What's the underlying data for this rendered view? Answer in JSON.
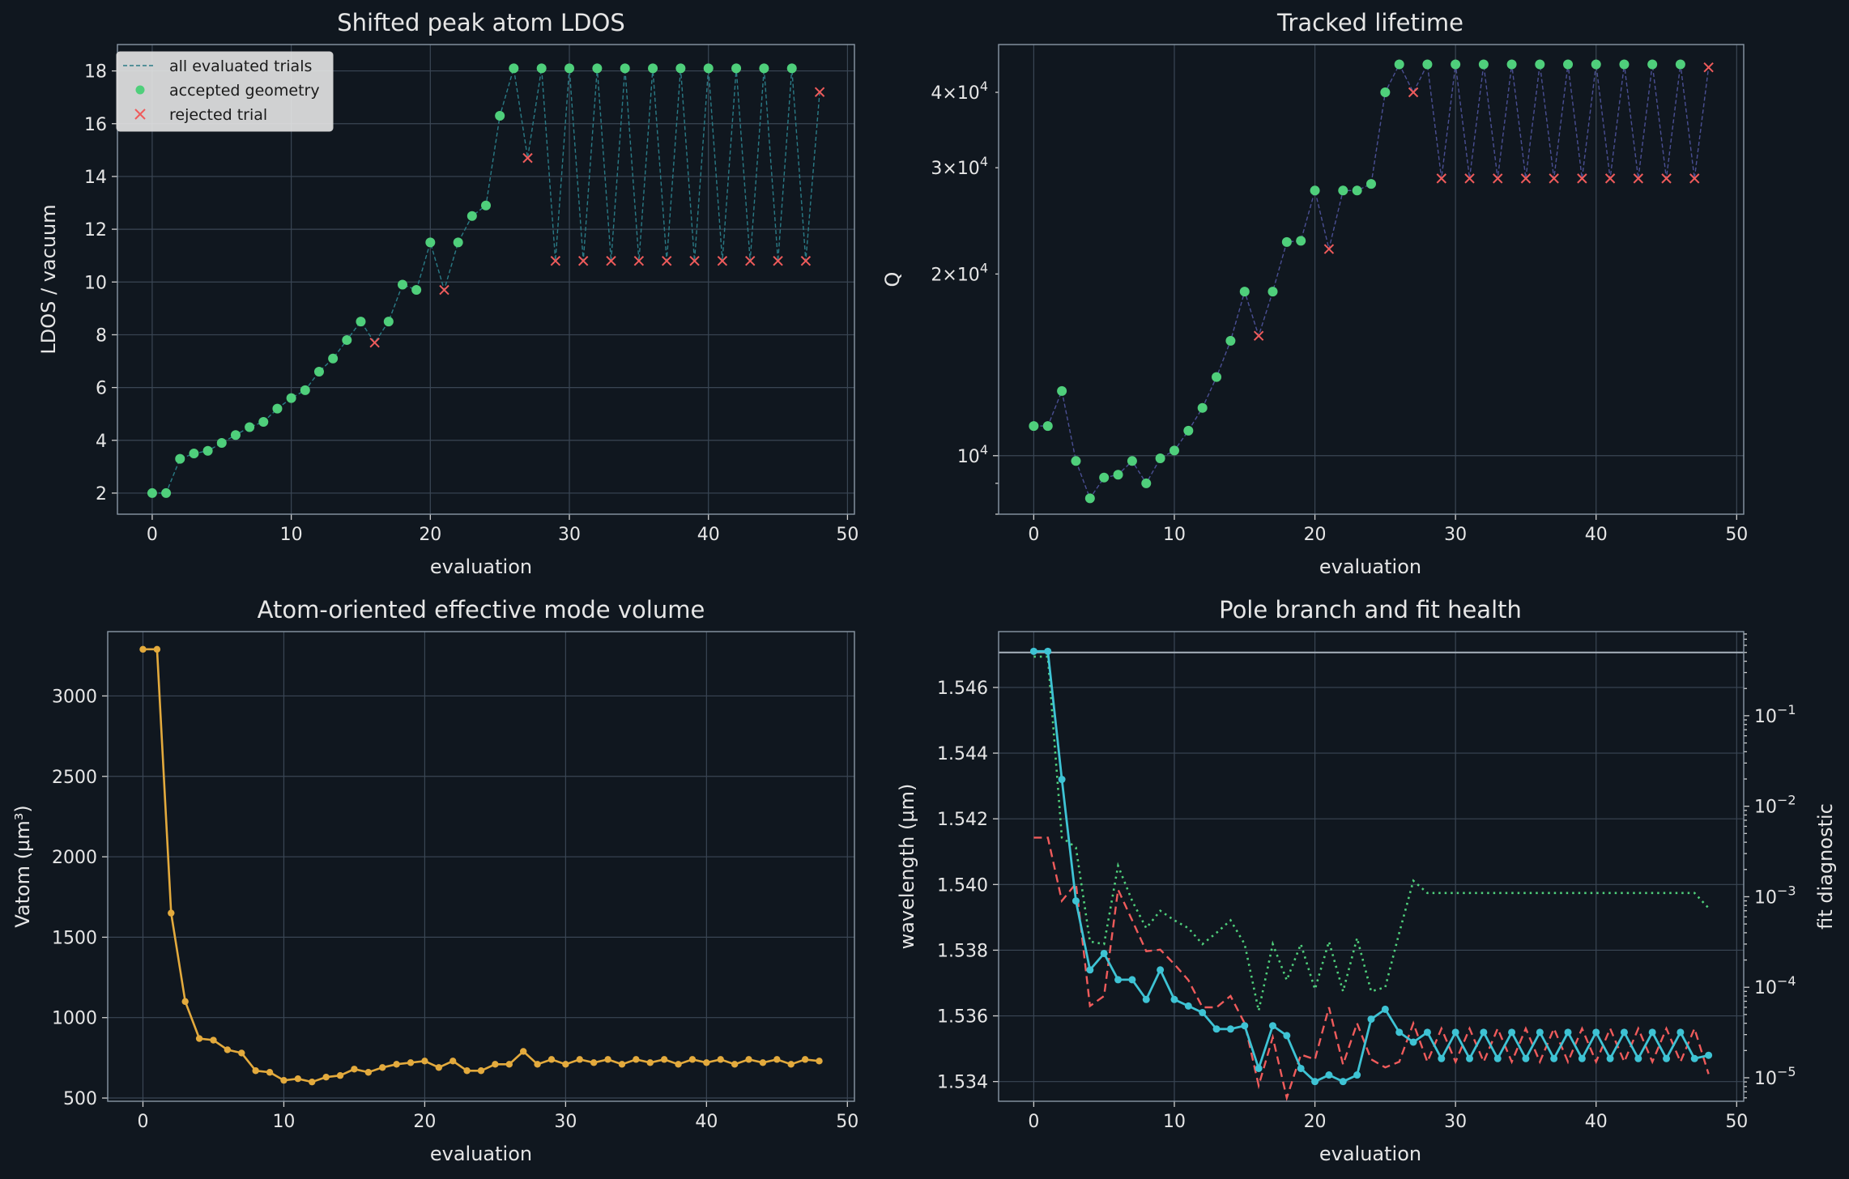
{
  "colors": {
    "background": "#10171f",
    "accepted": "#4fcf7b",
    "rejected": "#ef5b5b",
    "trials_line_ldos": "#2a7b86",
    "trials_line_q": "#4a4f93",
    "vatom": "#e3aa3d",
    "wavelength": "#3ec3d4",
    "diag_dashed": "#ef5b5b",
    "diag_dotted": "#4fcf7b",
    "hline": "#a9b3bd"
  },
  "chart_data": [
    {
      "type": "scatter",
      "title": "Shifted peak atom LDOS",
      "xlabel": "evaluation",
      "ylabel": "LDOS / vacuum",
      "xlim": [
        -2.5,
        50.5
      ],
      "ylim": [
        1.2,
        19.0
      ],
      "xticks": [
        0,
        10,
        20,
        30,
        40,
        50
      ],
      "yticks": [
        2,
        4,
        6,
        8,
        10,
        12,
        14,
        16,
        18
      ],
      "grid": true,
      "legend": {
        "position": "upper-left",
        "entries": [
          "all evaluated trials",
          "accepted geometry",
          "rejected trial"
        ]
      },
      "trials_x": [
        0,
        1,
        2,
        3,
        4,
        5,
        6,
        7,
        8,
        9,
        10,
        11,
        12,
        13,
        14,
        15,
        16,
        17,
        18,
        19,
        20,
        21,
        22,
        23,
        24,
        25,
        26,
        27,
        28,
        29,
        30,
        31,
        32,
        33,
        34,
        35,
        36,
        37,
        38,
        39,
        40,
        41,
        42,
        43,
        44,
        45,
        46,
        47,
        48
      ],
      "trials_y": [
        2.0,
        2.0,
        3.3,
        3.5,
        3.6,
        3.9,
        4.2,
        4.5,
        4.7,
        5.2,
        5.6,
        5.9,
        6.6,
        7.1,
        7.8,
        8.5,
        7.7,
        8.5,
        9.9,
        9.7,
        11.5,
        9.7,
        11.5,
        12.5,
        12.9,
        16.3,
        18.1,
        14.7,
        18.1,
        10.8,
        18.1,
        10.8,
        18.1,
        10.8,
        18.1,
        10.8,
        18.1,
        10.8,
        18.1,
        10.8,
        18.1,
        10.8,
        18.1,
        10.8,
        18.1,
        10.8,
        18.1,
        10.8,
        17.2
      ],
      "accepted_x": [
        0,
        1,
        2,
        3,
        4,
        5,
        6,
        7,
        8,
        9,
        10,
        11,
        12,
        13,
        14,
        15,
        17,
        18,
        19,
        20,
        22,
        23,
        24,
        25,
        26,
        28,
        30,
        32,
        34,
        36,
        38,
        40,
        42,
        44,
        46
      ],
      "accepted_y": [
        2.0,
        2.0,
        3.3,
        3.5,
        3.6,
        3.9,
        4.2,
        4.5,
        4.7,
        5.2,
        5.6,
        5.9,
        6.6,
        7.1,
        7.8,
        8.5,
        8.5,
        9.9,
        9.7,
        11.5,
        11.5,
        12.5,
        12.9,
        16.3,
        18.1,
        18.1,
        18.1,
        18.1,
        18.1,
        18.1,
        18.1,
        18.1,
        18.1,
        18.1,
        18.1
      ],
      "rejected_x": [
        16,
        21,
        27,
        29,
        31,
        33,
        35,
        37,
        39,
        41,
        43,
        45,
        47,
        48
      ],
      "rejected_y": [
        7.7,
        9.7,
        14.7,
        10.8,
        10.8,
        10.8,
        10.8,
        10.8,
        10.8,
        10.8,
        10.8,
        10.8,
        10.8,
        17.2
      ]
    },
    {
      "type": "scatter",
      "title": "Tracked lifetime",
      "xlabel": "evaluation",
      "ylabel": "Q",
      "y_scale": "log",
      "xlim": [
        -2.5,
        50.5
      ],
      "ylim": [
        8000,
        48000
      ],
      "xticks": [
        0,
        10,
        20,
        30,
        40,
        50
      ],
      "yticks_labeled": [
        {
          "value": 10000,
          "base": "10",
          "exp": "4",
          "coef": ""
        },
        {
          "value": 20000,
          "base": "10",
          "exp": "4",
          "coef": "2×"
        },
        {
          "value": 30000,
          "base": "10",
          "exp": "4",
          "coef": "3×"
        },
        {
          "value": 40000,
          "base": "10",
          "exp": "4",
          "coef": "4×"
        }
      ],
      "grid": true,
      "trials_x": [
        0,
        1,
        2,
        3,
        4,
        5,
        6,
        7,
        8,
        9,
        10,
        11,
        12,
        13,
        14,
        15,
        16,
        17,
        18,
        19,
        20,
        21,
        22,
        23,
        24,
        25,
        26,
        27,
        28,
        29,
        30,
        31,
        32,
        33,
        34,
        35,
        36,
        37,
        38,
        39,
        40,
        41,
        42,
        43,
        44,
        45,
        46,
        47,
        48
      ],
      "trials_y": [
        11200,
        11200,
        12800,
        9800,
        8500,
        9200,
        9300,
        9800,
        9000,
        9900,
        10200,
        11000,
        12000,
        13500,
        15500,
        18700,
        15800,
        18700,
        22600,
        22700,
        27500,
        22000,
        27500,
        27500,
        28200,
        40000,
        44500,
        40000,
        44500,
        28800,
        44500,
        28800,
        44500,
        28800,
        44500,
        28800,
        44500,
        28800,
        44500,
        28800,
        44500,
        28800,
        44500,
        28800,
        44500,
        28800,
        44500,
        28800,
        44000
      ],
      "accepted_x": [
        0,
        1,
        2,
        3,
        4,
        5,
        6,
        7,
        8,
        9,
        10,
        11,
        12,
        13,
        14,
        15,
        17,
        18,
        19,
        20,
        22,
        23,
        24,
        25,
        26,
        28,
        30,
        32,
        34,
        36,
        38,
        40,
        42,
        44,
        46
      ],
      "accepted_y": [
        11200,
        11200,
        12800,
        9800,
        8500,
        9200,
        9300,
        9800,
        9000,
        9900,
        10200,
        11000,
        12000,
        13500,
        15500,
        18700,
        18700,
        22600,
        22700,
        27500,
        27500,
        27500,
        28200,
        40000,
        44500,
        44500,
        44500,
        44500,
        44500,
        44500,
        44500,
        44500,
        44500,
        44500,
        44500
      ],
      "rejected_x": [
        16,
        21,
        27,
        29,
        31,
        33,
        35,
        37,
        39,
        41,
        43,
        45,
        47,
        48
      ],
      "rejected_y": [
        15800,
        22000,
        40000,
        28800,
        28800,
        28800,
        28800,
        28800,
        28800,
        28800,
        28800,
        28800,
        28800,
        44000
      ]
    },
    {
      "type": "line",
      "title": "Atom-oriented effective mode volume",
      "xlabel": "evaluation",
      "ylabel": "Vatom (µm³)",
      "xlim": [
        -2.5,
        50.5
      ],
      "ylim": [
        480,
        3400
      ],
      "xticks": [
        0,
        10,
        20,
        30,
        40,
        50
      ],
      "yticks": [
        500,
        1000,
        1500,
        2000,
        2500,
        3000
      ],
      "grid": true,
      "x": [
        0,
        1,
        2,
        3,
        4,
        5,
        6,
        7,
        8,
        9,
        10,
        11,
        12,
        13,
        14,
        15,
        16,
        17,
        18,
        19,
        20,
        21,
        22,
        23,
        24,
        25,
        26,
        27,
        28,
        29,
        30,
        31,
        32,
        33,
        34,
        35,
        36,
        37,
        38,
        39,
        40,
        41,
        42,
        43,
        44,
        45,
        46,
        47,
        48
      ],
      "values": [
        3290,
        3290,
        1650,
        1100,
        870,
        860,
        800,
        780,
        670,
        660,
        610,
        620,
        600,
        630,
        640,
        680,
        660,
        690,
        710,
        720,
        730,
        690,
        730,
        670,
        670,
        710,
        710,
        790,
        710,
        740,
        710,
        740,
        720,
        740,
        710,
        740,
        720,
        740,
        710,
        740,
        720,
        740,
        710,
        740,
        720,
        740,
        710,
        740,
        730
      ]
    },
    {
      "type": "line",
      "title": "Pole branch and fit health",
      "xlabel": "evaluation",
      "ylabel": "wavelength (µm)",
      "ylabel_right": "fit diagnostic",
      "xlim": [
        -2.5,
        50.5
      ],
      "ylim": [
        1.5334,
        1.5477
      ],
      "xticks": [
        0,
        10,
        20,
        30,
        40,
        50
      ],
      "yticks": [
        1.534,
        1.536,
        1.538,
        1.54,
        1.542,
        1.544,
        1.546
      ],
      "y2_scale": "log",
      "y2lim": [
        5.5e-06,
        0.85
      ],
      "y2ticks": [
        {
          "value": 0.1,
          "base": "10",
          "exp": "−1"
        },
        {
          "value": 0.01,
          "base": "10",
          "exp": "−2"
        },
        {
          "value": 0.001,
          "base": "10",
          "exp": "−3"
        },
        {
          "value": 0.0001,
          "base": "10",
          "exp": "−4"
        },
        {
          "value": 1e-05,
          "base": "10",
          "exp": "−5"
        }
      ],
      "grid": true,
      "hline_y2": 0.5,
      "x": [
        0,
        1,
        2,
        3,
        4,
        5,
        6,
        7,
        8,
        9,
        10,
        11,
        12,
        13,
        14,
        15,
        16,
        17,
        18,
        19,
        20,
        21,
        22,
        23,
        24,
        25,
        26,
        27,
        28,
        29,
        30,
        31,
        32,
        33,
        34,
        35,
        36,
        37,
        38,
        39,
        40,
        41,
        42,
        43,
        44,
        45,
        46,
        47,
        48
      ],
      "series": [
        {
          "axis": "left",
          "style": "solid-markers",
          "values": [
            1.5471,
            1.5471,
            1.5432,
            1.5395,
            1.5374,
            1.5379,
            1.5371,
            1.5371,
            1.5365,
            1.5374,
            1.5365,
            1.5363,
            1.5361,
            1.5356,
            1.5356,
            1.5357,
            1.5344,
            1.5357,
            1.5354,
            1.5344,
            1.534,
            1.5342,
            1.534,
            1.5342,
            1.5359,
            1.5362,
            1.5355,
            1.5352,
            1.5355,
            1.5347,
            1.5355,
            1.5347,
            1.5355,
            1.5347,
            1.5355,
            1.5347,
            1.5355,
            1.5347,
            1.5355,
            1.5347,
            1.5355,
            1.5347,
            1.5355,
            1.5347,
            1.5355,
            1.5347,
            1.5355,
            1.5347,
            1.5348
          ]
        },
        {
          "axis": "right",
          "style": "dashed",
          "values": [
            0.0045,
            0.0045,
            0.0009,
            0.0014,
            6.2e-05,
            8e-05,
            0.0012,
            0.00055,
            0.00025,
            0.00026,
            0.00018,
            0.00012,
            6e-05,
            6e-05,
            8e-05,
            4e-05,
            8.2e-06,
            2.8e-05,
            6e-06,
            1.8e-05,
            1.6e-05,
            6e-05,
            1.4e-05,
            4e-05,
            1.6e-05,
            1.3e-05,
            1.5e-05,
            4e-05,
            1.5e-05,
            3.5e-05,
            1.5e-05,
            3.5e-05,
            1.5e-05,
            3.5e-05,
            1.5e-05,
            3.5e-05,
            1.5e-05,
            3.5e-05,
            1.5e-05,
            3.5e-05,
            1.5e-05,
            3.5e-05,
            1.5e-05,
            3.5e-05,
            1.5e-05,
            3.5e-05,
            1.5e-05,
            3.5e-05,
            1.1e-05
          ]
        },
        {
          "axis": "right",
          "style": "dotted",
          "values": [
            0.45,
            0.45,
            0.0045,
            0.0035,
            0.00032,
            0.0003,
            0.0022,
            0.0009,
            0.00045,
            0.0007,
            0.00055,
            0.00045,
            0.0003,
            0.0004,
            0.00055,
            0.0003,
            5.5e-05,
            0.0003,
            0.00012,
            0.0003,
            9.5e-05,
            0.00032,
            9e-05,
            0.00035,
            9e-05,
            0.0001,
            0.0004,
            0.0015,
            0.0011,
            0.0011,
            0.0011,
            0.0011,
            0.0011,
            0.0011,
            0.0011,
            0.0011,
            0.0011,
            0.0011,
            0.0011,
            0.0011,
            0.0011,
            0.0011,
            0.0011,
            0.0011,
            0.0011,
            0.0011,
            0.0011,
            0.0011,
            0.00075
          ]
        }
      ]
    }
  ]
}
